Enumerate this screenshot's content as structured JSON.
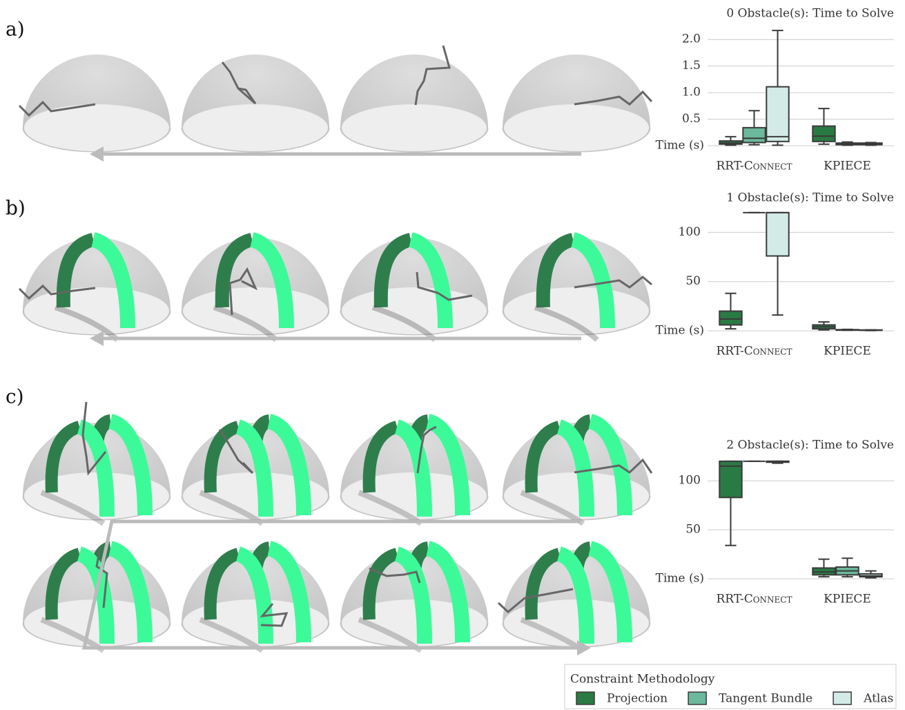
{
  "panels": [
    "a)",
    "b)",
    "c)"
  ],
  "legend_title": "Constraint Methodology",
  "chart_data": [
    {
      "type": "box",
      "title": "0 Obstacle(s): Time to Solve",
      "ylabel": "Time (s)",
      "categories": [
        "RRT-Connect",
        "KPIECE"
      ],
      "ylim": [
        0,
        2.25
      ],
      "yticks": [
        0.5,
        {
          "value": 1,
          "label": "1.0"
        },
        1.5,
        {
          "value": 2,
          "label": "2.0"
        }
      ],
      "grid": true,
      "series": [
        {
          "name": "Projection",
          "color": "#2a7a44",
          "values": [
            {
              "min": 0.01,
              "q1": 0.03,
              "median": 0.05,
              "q3": 0.09,
              "max": 0.17
            },
            {
              "min": 0.03,
              "q1": 0.08,
              "median": 0.18,
              "q3": 0.37,
              "max": 0.7
            }
          ]
        },
        {
          "name": "Tangent Bundle",
          "color": "#6bb89c",
          "values": [
            {
              "min": 0.02,
              "q1": 0.06,
              "median": 0.14,
              "q3": 0.34,
              "max": 0.66
            },
            {
              "min": 0.01,
              "q1": 0.02,
              "median": 0.03,
              "q3": 0.05,
              "max": 0.07
            }
          ]
        },
        {
          "name": "Atlas",
          "color": "#d3ebe6",
          "values": [
            {
              "min": 0.01,
              "q1": 0.08,
              "median": 0.17,
              "q3": 1.11,
              "max": 2.17
            },
            {
              "min": 0.01,
              "q1": 0.02,
              "median": 0.03,
              "q3": 0.05,
              "max": 0.06
            }
          ]
        }
      ]
    },
    {
      "type": "box",
      "title": "1 Obstacle(s): Time to Solve",
      "ylabel": "Time (s)",
      "categories": [
        "RRT-Connect",
        "KPIECE"
      ],
      "ylim": [
        0,
        122
      ],
      "yticks": [
        50,
        100
      ],
      "grid": true,
      "series": [
        {
          "name": "Projection",
          "color": "#2a7a44",
          "values": [
            {
              "min": 2,
              "q1": 6,
              "median": 12,
              "q3": 20,
              "max": 38
            },
            {
              "min": 1,
              "q1": 2,
              "median": 4,
              "q3": 6,
              "max": 9
            }
          ]
        },
        {
          "name": "Tangent Bundle",
          "color": "#6bb89c",
          "values": [
            {
              "min": 120,
              "q1": 120,
              "median": 120,
              "q3": 120,
              "max": 120
            },
            {
              "min": 0.5,
              "q1": 0.7,
              "median": 1,
              "q3": 1.2,
              "max": 1.5
            }
          ]
        },
        {
          "name": "Atlas",
          "color": "#d3ebe6",
          "values": [
            {
              "min": 16,
              "q1": 76,
              "median": 120,
              "q3": 120,
              "max": 120
            },
            {
              "min": 0.3,
              "q1": 0.5,
              "median": 0.7,
              "q3": 0.9,
              "max": 1
            }
          ]
        }
      ]
    },
    {
      "type": "box",
      "title": "2 Obstacle(s): Time to Solve",
      "ylabel": "Time (s)",
      "categories": [
        "RRT-Connect",
        "KPIECE"
      ],
      "ylim": [
        0,
        122
      ],
      "yticks": [
        50,
        100
      ],
      "grid": true,
      "series": [
        {
          "name": "Projection",
          "color": "#2a7a44",
          "values": [
            {
              "min": 34,
              "q1": 83,
              "median": 115,
              "q3": 120,
              "max": 120
            },
            {
              "min": 2,
              "q1": 4,
              "median": 7,
              "q3": 11,
              "max": 20
            }
          ]
        },
        {
          "name": "Tangent Bundle",
          "color": "#6bb89c",
          "values": [
            {
              "min": 120,
              "q1": 120,
              "median": 120,
              "q3": 120,
              "max": 120
            },
            {
              "min": 2,
              "q1": 4,
              "median": 8,
              "q3": 12,
              "max": 21
            }
          ]
        },
        {
          "name": "Atlas",
          "color": "#d3ebe6",
          "values": [
            {
              "min": 118,
              "q1": 119,
              "median": 120,
              "q3": 120,
              "max": 120
            },
            {
              "min": 1,
              "q1": 2,
              "median": 3,
              "q3": 5,
              "max": 8
            }
          ]
        }
      ]
    }
  ]
}
